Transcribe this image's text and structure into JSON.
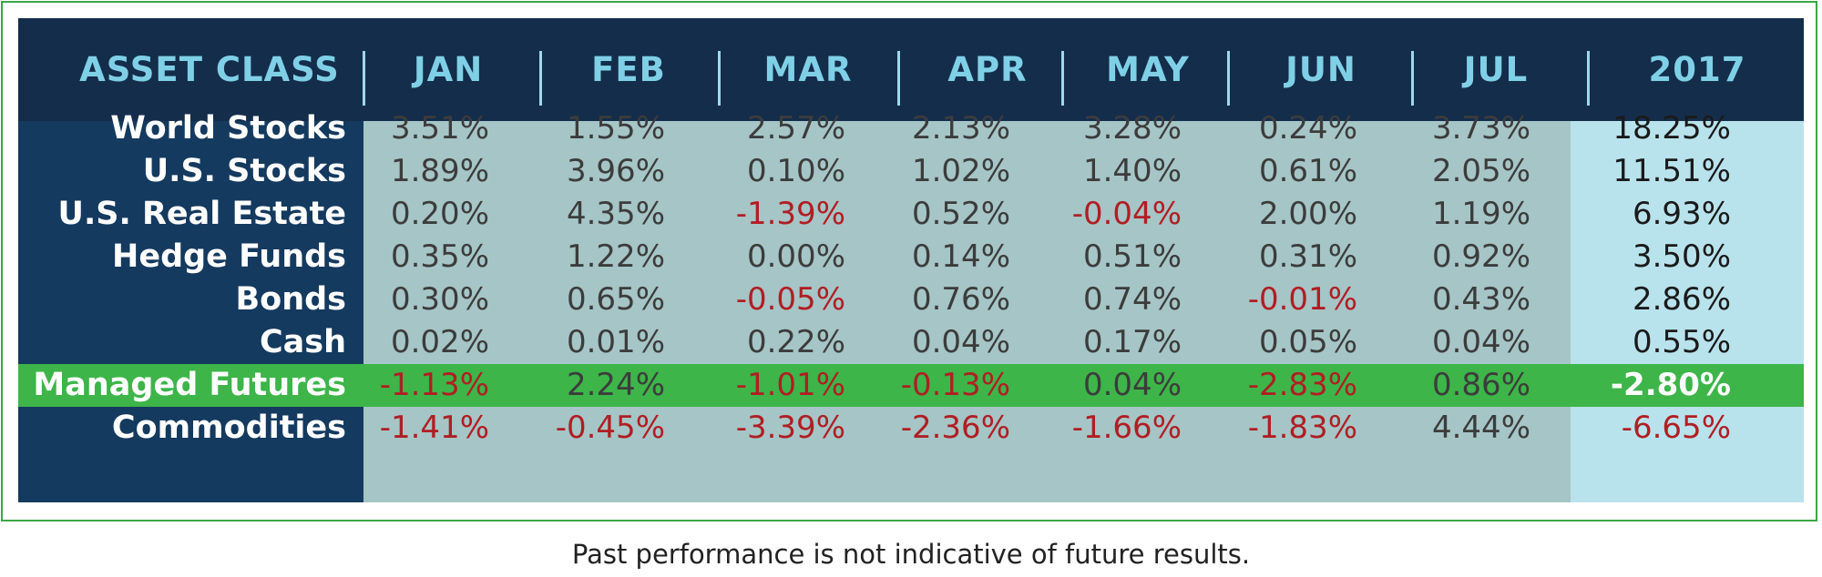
{
  "chart_data": {
    "type": "table",
    "title": "",
    "columns": [
      "ASSET CLASS",
      "JAN",
      "FEB",
      "MAR",
      "APR",
      "MAY",
      "JUN",
      "JUL",
      "2017"
    ],
    "rows": [
      {
        "label": "World Stocks",
        "values": [
          "3.51%",
          "1.55%",
          "2.57%",
          "2.13%",
          "3.28%",
          "0.24%",
          "3.73%",
          "18.25%"
        ],
        "highlight": false
      },
      {
        "label": "U.S. Stocks",
        "values": [
          "1.89%",
          "3.96%",
          "0.10%",
          "1.02%",
          "1.40%",
          "0.61%",
          "2.05%",
          "11.51%"
        ],
        "highlight": false
      },
      {
        "label": "U.S. Real Estate",
        "values": [
          "0.20%",
          "4.35%",
          "-1.39%",
          "0.52%",
          "-0.04%",
          "2.00%",
          "1.19%",
          "6.93%"
        ],
        "highlight": false
      },
      {
        "label": "Hedge Funds",
        "values": [
          "0.35%",
          "1.22%",
          "0.00%",
          "0.14%",
          "0.51%",
          "0.31%",
          "0.92%",
          "3.50%"
        ],
        "highlight": false
      },
      {
        "label": "Bonds",
        "values": [
          "0.30%",
          "0.65%",
          "-0.05%",
          "0.76%",
          "0.74%",
          "-0.01%",
          "0.43%",
          "2.86%"
        ],
        "highlight": false
      },
      {
        "label": "Cash",
        "values": [
          "0.02%",
          "0.01%",
          "0.22%",
          "0.04%",
          "0.17%",
          "0.05%",
          "0.04%",
          "0.55%"
        ],
        "highlight": false
      },
      {
        "label": "Managed Futures",
        "values": [
          "-1.13%",
          "2.24%",
          "-1.01%",
          "-0.13%",
          "0.04%",
          "-2.83%",
          "0.86%",
          "-2.80%"
        ],
        "highlight": true
      },
      {
        "label": "Commodities",
        "values": [
          "-1.41%",
          "-0.45%",
          "-3.39%",
          "-2.36%",
          "-1.66%",
          "-1.83%",
          "4.44%",
          "-6.65%"
        ],
        "highlight": false
      }
    ],
    "footnote": "Past performance is not indicative of future results."
  },
  "colors": {
    "header_bg": "#142d4b",
    "header_text": "#7fd0e6",
    "label_bg": "#153a5f",
    "month_bg": "#a6c5c6",
    "year_bg": "#b9e3ec",
    "highlight_bg": "#3db549",
    "negative_text": "#b01e23",
    "border": "#3aa845"
  }
}
